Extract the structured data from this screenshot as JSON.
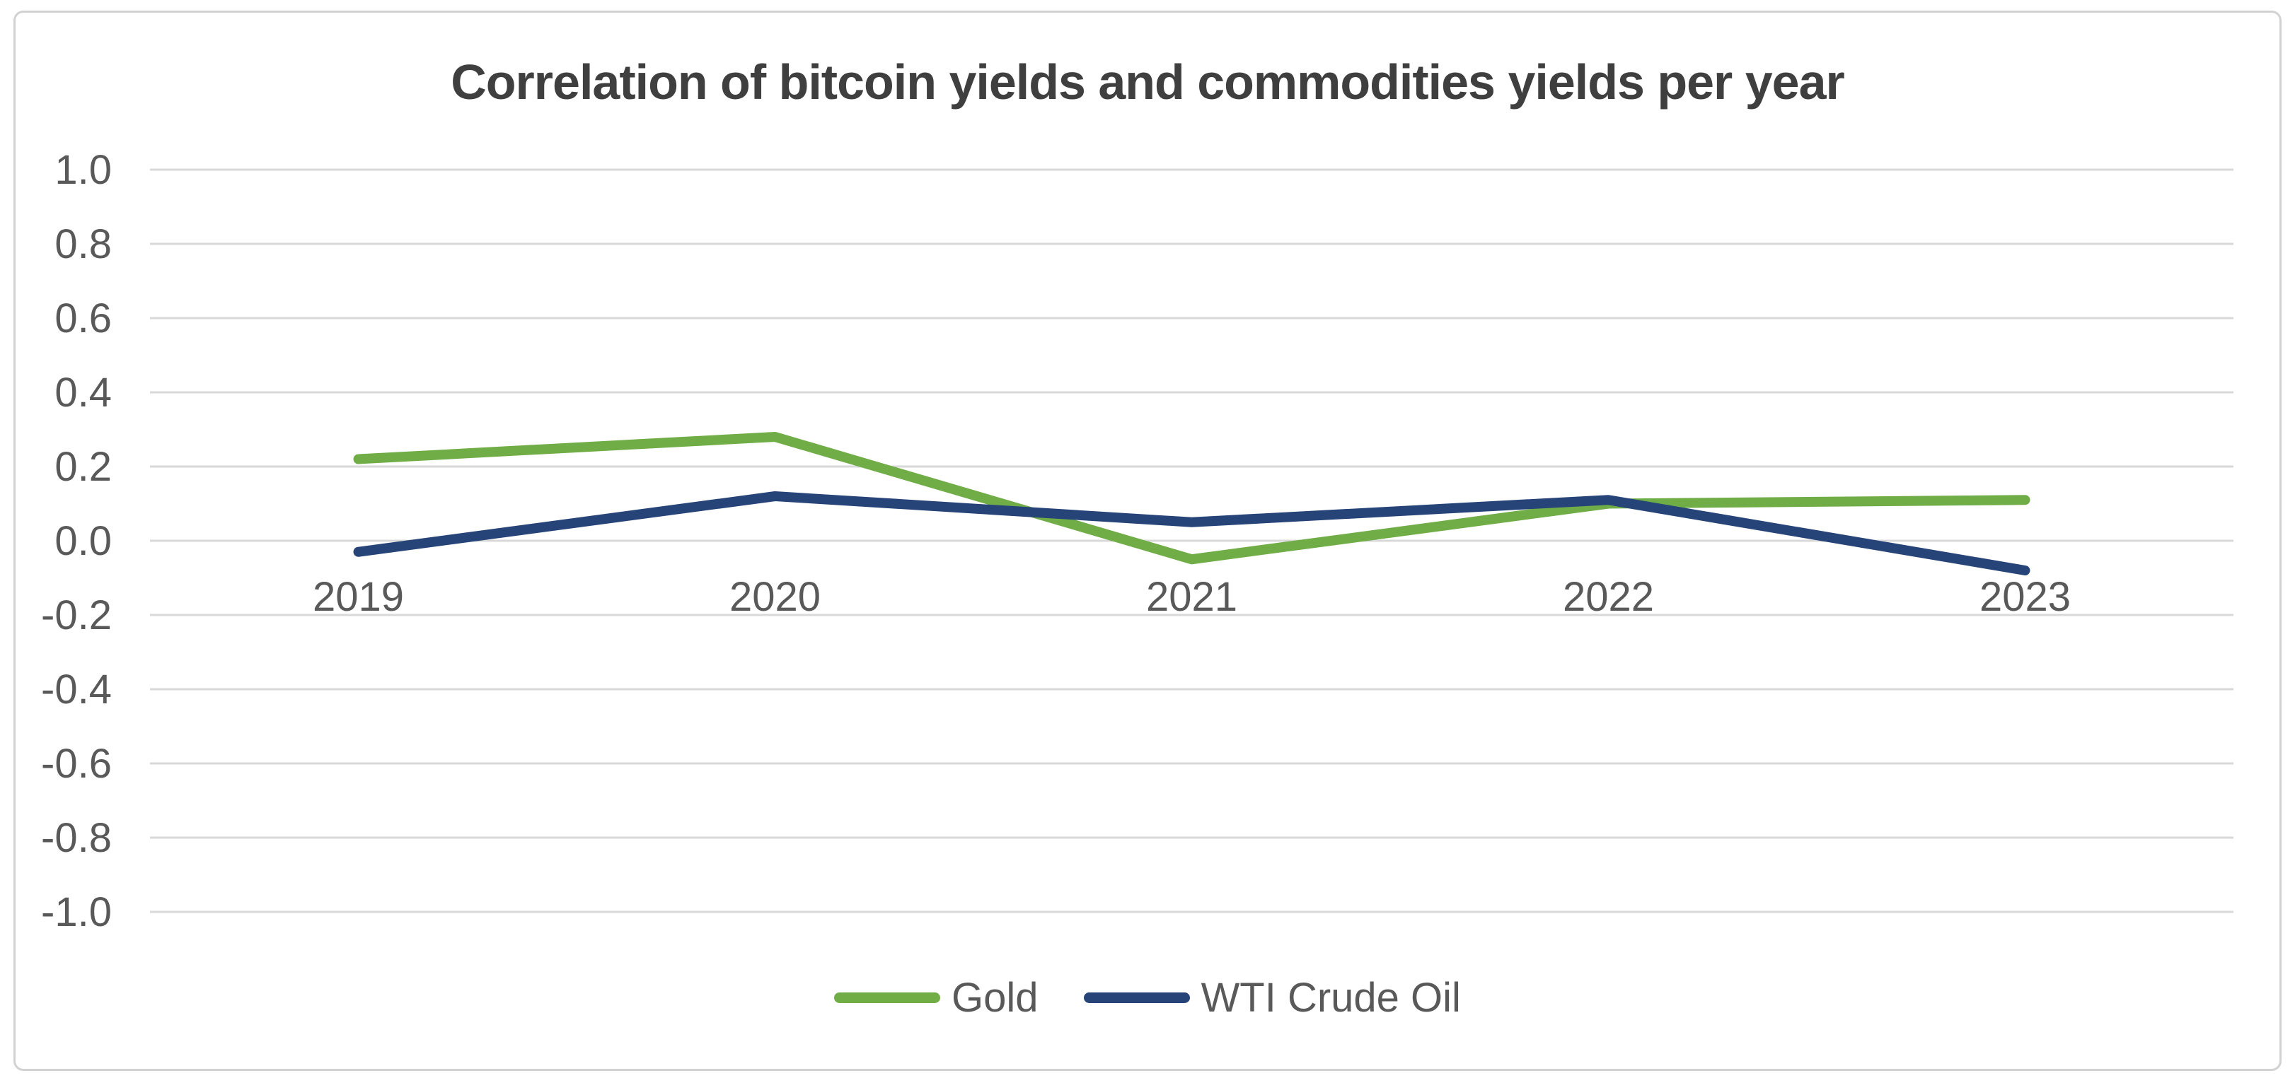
{
  "chart": {
    "title": "Correlation of bitcoin yields and commodities yields per year",
    "title_color": "#3f3f3f",
    "axis_label_color": "#595959",
    "gridline_color": "#d9d9d9",
    "frame_border_color": "#d2d2d2",
    "background_color": "#ffffff"
  },
  "legend": {
    "items": [
      {
        "label": "Gold",
        "color": "#70ad47"
      },
      {
        "label": "WTI Crude Oil",
        "color": "#264478"
      }
    ],
    "position": "bottom-center"
  },
  "chart_data": {
    "type": "line",
    "title": "Correlation of bitcoin yields and commodities yields per year",
    "categories": [
      "2019",
      "2020",
      "2021",
      "2022",
      "2023"
    ],
    "series": [
      {
        "name": "Gold",
        "color": "#70ad47",
        "values": [
          0.22,
          0.28,
          -0.05,
          0.1,
          0.11
        ]
      },
      {
        "name": "WTI Crude Oil",
        "color": "#264478",
        "values": [
          -0.03,
          0.12,
          0.05,
          0.11,
          -0.08
        ]
      }
    ],
    "xlabel": "",
    "ylabel": "",
    "ylim": [
      -1.0,
      1.0
    ],
    "ytick_step": 0.2,
    "yticks": [
      "1.0",
      "0.8",
      "0.6",
      "0.4",
      "0.2",
      "0.0",
      "-0.2",
      "-0.4",
      "-0.6",
      "-0.8",
      "-1.0"
    ],
    "grid": "horizontal",
    "legend_position": "bottom"
  }
}
